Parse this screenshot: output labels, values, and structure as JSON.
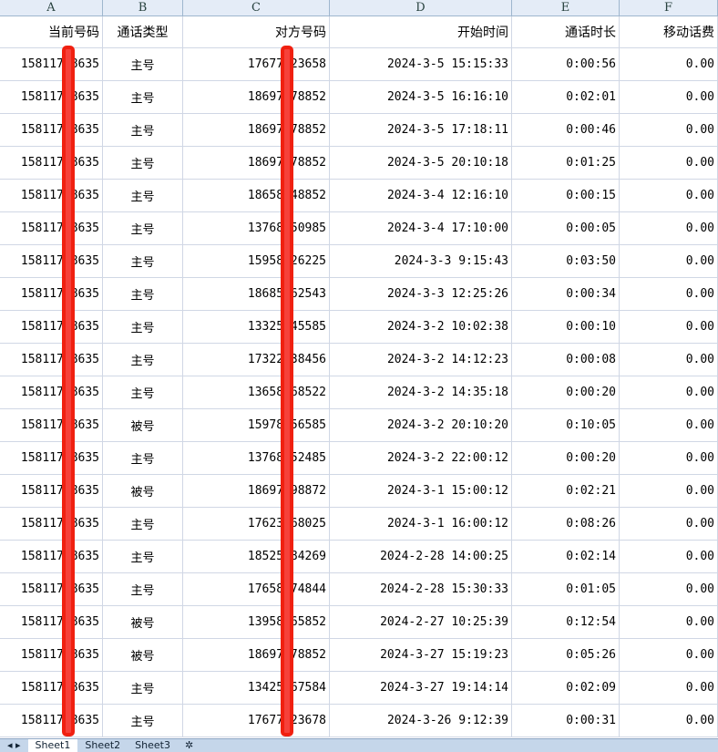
{
  "columns": [
    "A",
    "B",
    "C",
    "D",
    "E",
    "F"
  ],
  "headers": [
    "当前号码",
    "通话类型",
    "对方号码",
    "开始时间",
    "通话时长",
    "移动话费"
  ],
  "rows": [
    [
      "15811758635",
      "主号",
      "17677123658",
      "2024-3-5 15:15:33",
      "0:00:56",
      "0.00"
    ],
    [
      "15811758635",
      "主号",
      "18697378852",
      "2024-3-5 16:16:10",
      "0:02:01",
      "0.00"
    ],
    [
      "15811758635",
      "主号",
      "18697378852",
      "2024-3-5 17:18:11",
      "0:00:46",
      "0.00"
    ],
    [
      "15811758635",
      "主号",
      "18697378852",
      "2024-3-5 20:10:18",
      "0:01:25",
      "0.00"
    ],
    [
      "15811758635",
      "主号",
      "18658548852",
      "2024-3-4 12:16:10",
      "0:00:15",
      "0.00"
    ],
    [
      "15811758635",
      "主号",
      "13768250985",
      "2024-3-4 17:10:00",
      "0:00:05",
      "0.00"
    ],
    [
      "15811758635",
      "主号",
      "15958426225",
      "2024-3-3 9:15:43",
      "0:03:50",
      "0.00"
    ],
    [
      "15811758635",
      "主号",
      "18685562543",
      "2024-3-3 12:25:26",
      "0:00:34",
      "0.00"
    ],
    [
      "15811758635",
      "主号",
      "13325545585",
      "2024-3-2 10:02:38",
      "0:00:10",
      "0.00"
    ],
    [
      "15811758635",
      "主号",
      "17322538456",
      "2024-3-2 14:12:23",
      "0:00:08",
      "0.00"
    ],
    [
      "15811758635",
      "主号",
      "13658568522",
      "2024-3-2 14:35:18",
      "0:00:20",
      "0.00"
    ],
    [
      "15811758635",
      "被号",
      "15978156585",
      "2024-3-2 20:10:20",
      "0:10:05",
      "0.00"
    ],
    [
      "15811758635",
      "主号",
      "13768252485",
      "2024-3-2 22:00:12",
      "0:00:20",
      "0.00"
    ],
    [
      "15811758635",
      "被号",
      "18697598872",
      "2024-3-1 15:00:12",
      "0:02:21",
      "0.00"
    ],
    [
      "15811758635",
      "主号",
      "17623568025",
      "2024-3-1 16:00:12",
      "0:08:26",
      "0.00"
    ],
    [
      "15811758635",
      "主号",
      "18525584269",
      "2024-2-28 14:00:25",
      "0:02:14",
      "0.00"
    ],
    [
      "15811758635",
      "主号",
      "17658474844",
      "2024-2-28 15:30:33",
      "0:01:05",
      "0.00"
    ],
    [
      "15811758635",
      "被号",
      "13958265852",
      "2024-2-27 10:25:39",
      "0:12:54",
      "0.00"
    ],
    [
      "15811758635",
      "被号",
      "18697378852",
      "2024-3-27 15:19:23",
      "0:05:26",
      "0.00"
    ],
    [
      "15811758635",
      "主号",
      "13425567584",
      "2024-3-27 19:14:14",
      "0:02:09",
      "0.00"
    ],
    [
      "15811758635",
      "主号",
      "17677123678",
      "2024-3-26 9:12:39",
      "0:00:31",
      "0.00"
    ]
  ],
  "sheet_tabs": [
    "Sheet1",
    "Sheet2",
    "Sheet3"
  ],
  "redaction_color": "#f02010"
}
